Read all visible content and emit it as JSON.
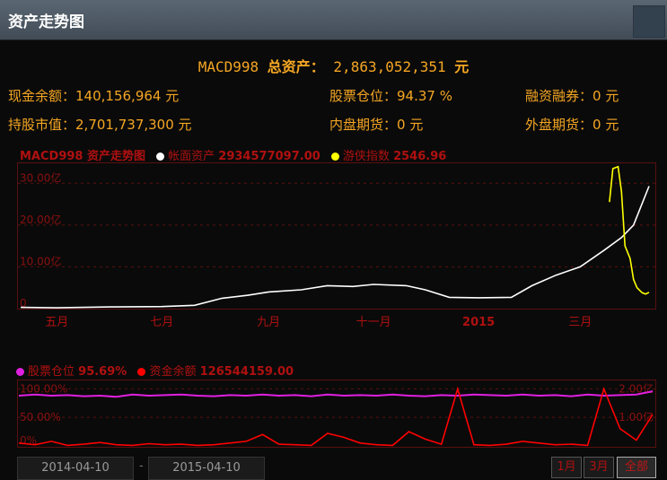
{
  "window": {
    "title": "资产走势图"
  },
  "summary": {
    "account": "MACD998",
    "label": "总资产：",
    "value": "2,863,052,351",
    "unit": "元"
  },
  "stats": [
    {
      "key": "现金余额：",
      "value": "140,156,964 元"
    },
    {
      "key": "股票仓位：",
      "value": "94.37 %"
    },
    {
      "key": "融资融券：",
      "value": "0 元"
    },
    {
      "key": "持股市值：",
      "value": "2,701,737,300 元"
    },
    {
      "key": "内盘期货：",
      "value": "0 元"
    },
    {
      "key": "外盘期货：",
      "value": "0 元"
    }
  ],
  "chart1_legend": {
    "title": "MACD998 资产走势图",
    "series1_label": "帐面资产",
    "series1_value": "2934577097.00",
    "series2_label": "游侠指数",
    "series2_value": "2546.96"
  },
  "chart2_legend": {
    "series1_label": "股票仓位",
    "series1_value": "95.69%",
    "series2_label": "资金余额",
    "series2_value": "126544159.00"
  },
  "date_range": {
    "start": "2014-04-10",
    "end": "2015-04-10",
    "separator": "-"
  },
  "range_buttons": [
    "1月",
    "3月",
    "全部"
  ],
  "colors": {
    "accent": "#f5a623",
    "chart_red": "#b01010",
    "series_white": "#ffffff",
    "series_yellow": "#ffff00",
    "series_magenta": "#e020e0",
    "series_red": "#ff0000"
  },
  "chart_data": [
    {
      "type": "line",
      "title": "MACD998 资产走势图",
      "x_tick_labels": [
        "五月",
        "七月",
        "九月",
        "十一月",
        "2015",
        "三月"
      ],
      "y_tick_labels": [
        "0",
        "10.00亿",
        "20.00亿",
        "30.00亿"
      ],
      "ylim": [
        0,
        35
      ],
      "y_unit": "亿",
      "grid": true,
      "legend": "top-left",
      "x": [
        "2014-04-10",
        "2014-05-01",
        "2014-06-01",
        "2014-07-01",
        "2014-07-20",
        "2014-08-05",
        "2014-08-20",
        "2014-09-01",
        "2014-09-20",
        "2014-10-05",
        "2014-10-20",
        "2014-11-01",
        "2014-11-20",
        "2014-12-01",
        "2014-12-15",
        "2015-01-01",
        "2015-01-20",
        "2015-02-01",
        "2015-02-15",
        "2015-03-01",
        "2015-03-15",
        "2015-03-25",
        "2015-04-01",
        "2015-04-10"
      ],
      "series": [
        {
          "name": "帐面资产",
          "values": [
            0.3,
            0.2,
            0.4,
            0.5,
            0.8,
            2.5,
            3.2,
            4.0,
            4.5,
            5.5,
            5.3,
            5.8,
            5.5,
            4.5,
            2.7,
            2.6,
            2.7,
            5.5,
            8.0,
            10.0,
            14.0,
            17.0,
            20.0,
            29.3
          ]
        },
        {
          "name": "游侠指数",
          "x": [
            "2015-03-18",
            "2015-03-20",
            "2015-03-23",
            "2015-03-25",
            "2015-03-27",
            "2015-03-30",
            "2015-04-01",
            "2015-04-03",
            "2015-04-06",
            "2015-04-08",
            "2015-04-10"
          ],
          "values": [
            25.5,
            33.5,
            34.0,
            28.0,
            15.0,
            12.0,
            7.0,
            5.0,
            3.8,
            3.5,
            3.9
          ]
        }
      ]
    },
    {
      "type": "line",
      "x_tick_labels": [],
      "y_tick_labels_left": [
        "0%",
        "50.00%",
        "100.00%"
      ],
      "y_tick_labels_right": [
        "1.00亿",
        "2.00亿"
      ],
      "ylim": [
        0,
        110
      ],
      "grid": true,
      "legend": "top-left",
      "series": [
        {
          "name": "股票仓位",
          "values": [
            88,
            90,
            88,
            89,
            87,
            88,
            86,
            90,
            88,
            89,
            90,
            88,
            87,
            89,
            88,
            90,
            88,
            89,
            87,
            90,
            88,
            89,
            88,
            90,
            88,
            87,
            89,
            88,
            90,
            89,
            88,
            90,
            88,
            89,
            87,
            90,
            88,
            89,
            90,
            95.7
          ]
        },
        {
          "name": "资金余额",
          "values": [
            5,
            2,
            8,
            1,
            3,
            6,
            2,
            1,
            4,
            2,
            3,
            1,
            2,
            5,
            8,
            20,
            3,
            2,
            1,
            22,
            15,
            5,
            2,
            1,
            25,
            12,
            3,
            100,
            2,
            1,
            3,
            8,
            5,
            2,
            3,
            1,
            100,
            30,
            10,
            55
          ]
        }
      ]
    }
  ]
}
